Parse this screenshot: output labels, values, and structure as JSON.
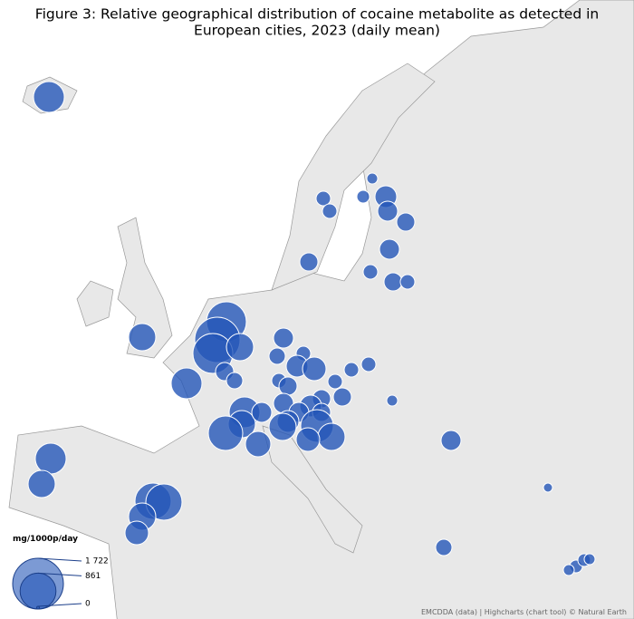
{
  "chart_data": {
    "type": "bubble-map",
    "title": "Figure 3: Relative geographical distribution of cocaine metabolite as detected in",
    "subtitle": "European cities, 2023 (daily mean)",
    "legend_title": "mg/1000p/day",
    "legend_ticks": [
      {
        "value": 1722,
        "label": "1 722"
      },
      861,
      0
    ],
    "color": "#2456b8",
    "values": [
      635,
      141,
      141,
      79,
      108,
      316,
      266,
      220,
      266,
      141,
      220,
      141,
      220,
      494,
      1063,
      1373,
      1063,
      494,
      220,
      178,
      635,
      266,
      178,
      141,
      316,
      371,
      141,
      220,
      141,
      141,
      141,
      220,
      220,
      316,
      635,
      494,
      266,
      266,
      266,
      220,
      712,
      494,
      371,
      316,
      793,
      430,
      79,
      266,
      494,
      635,
      494,
      878,
      878,
      494,
      371,
      178,
      55,
      108,
      108,
      79,
      79
    ],
    "credits": "EMCDDA (data) | Highcharts (chart tool) © Natural Earth"
  }
}
